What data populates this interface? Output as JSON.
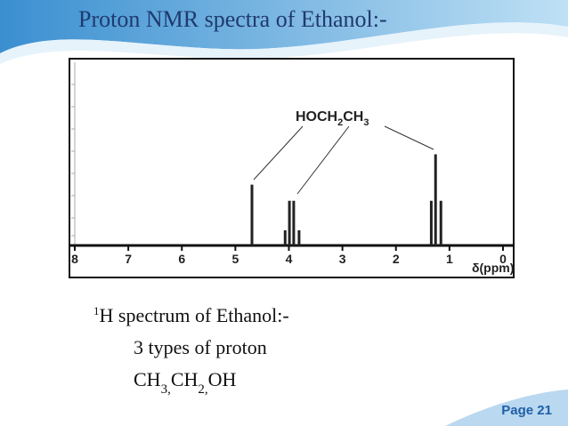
{
  "slide": {
    "title": "Proton NMR spectra of Ethanol:-",
    "body": [
      {
        "sup": "1",
        "text": "H spectrum of Ethanol:-"
      },
      {
        "text": "3 types of proton"
      },
      {
        "parts": [
          "CH",
          "3,",
          "CH",
          "2,",
          "OH"
        ]
      }
    ],
    "page": "Page 21"
  },
  "chart_data": {
    "type": "stick",
    "annotation": [
      "HOCH",
      "2",
      "CH",
      "3"
    ],
    "x_label": "δ(ppm)",
    "x": [
      4.69,
      4.07,
      3.99,
      3.91,
      3.81,
      1.34,
      1.26,
      1.16
    ],
    "values": [
      68,
      17,
      50,
      50,
      17,
      50,
      102,
      50
    ],
    "color": "#222222",
    "xlim": [
      8.1,
      -0.2
    ],
    "xticks": [
      8,
      7,
      6,
      5,
      4,
      3,
      2,
      1,
      0
    ],
    "ylim": [
      0,
      209
    ]
  }
}
